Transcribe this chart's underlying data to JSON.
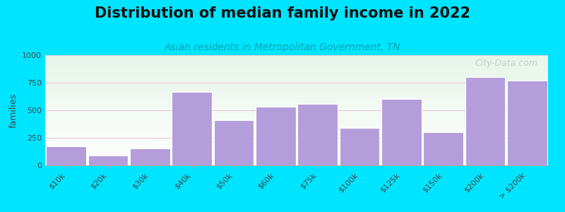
{
  "title": "Distribution of median family income in 2022",
  "subtitle": "Asian residents in Metropolitan Government, TN",
  "categories": [
    "$10k",
    "$20k",
    "$30k",
    "$40k",
    "$50k",
    "$60k",
    "$75k",
    "$100k",
    "$125k",
    "$150k",
    "$200k",
    "> $200k"
  ],
  "values": [
    175,
    90,
    155,
    665,
    410,
    530,
    560,
    340,
    600,
    300,
    800,
    770
  ],
  "bar_color": "#b39ddb",
  "background_outer": "#00e5ff",
  "background_plot_top": "#e8f5e9",
  "background_plot_bottom": "#ffffff",
  "title_fontsize": 15,
  "subtitle_fontsize": 10,
  "ylabel": "families",
  "ylim": [
    0,
    1000
  ],
  "yticks": [
    0,
    250,
    500,
    750,
    1000
  ],
  "watermark": "City-Data.com",
  "watermark_color": "#b8b8b8",
  "grid_color": "#e8c8d8",
  "spine_color": "#aaaaaa",
  "tick_label_color": "#444444"
}
